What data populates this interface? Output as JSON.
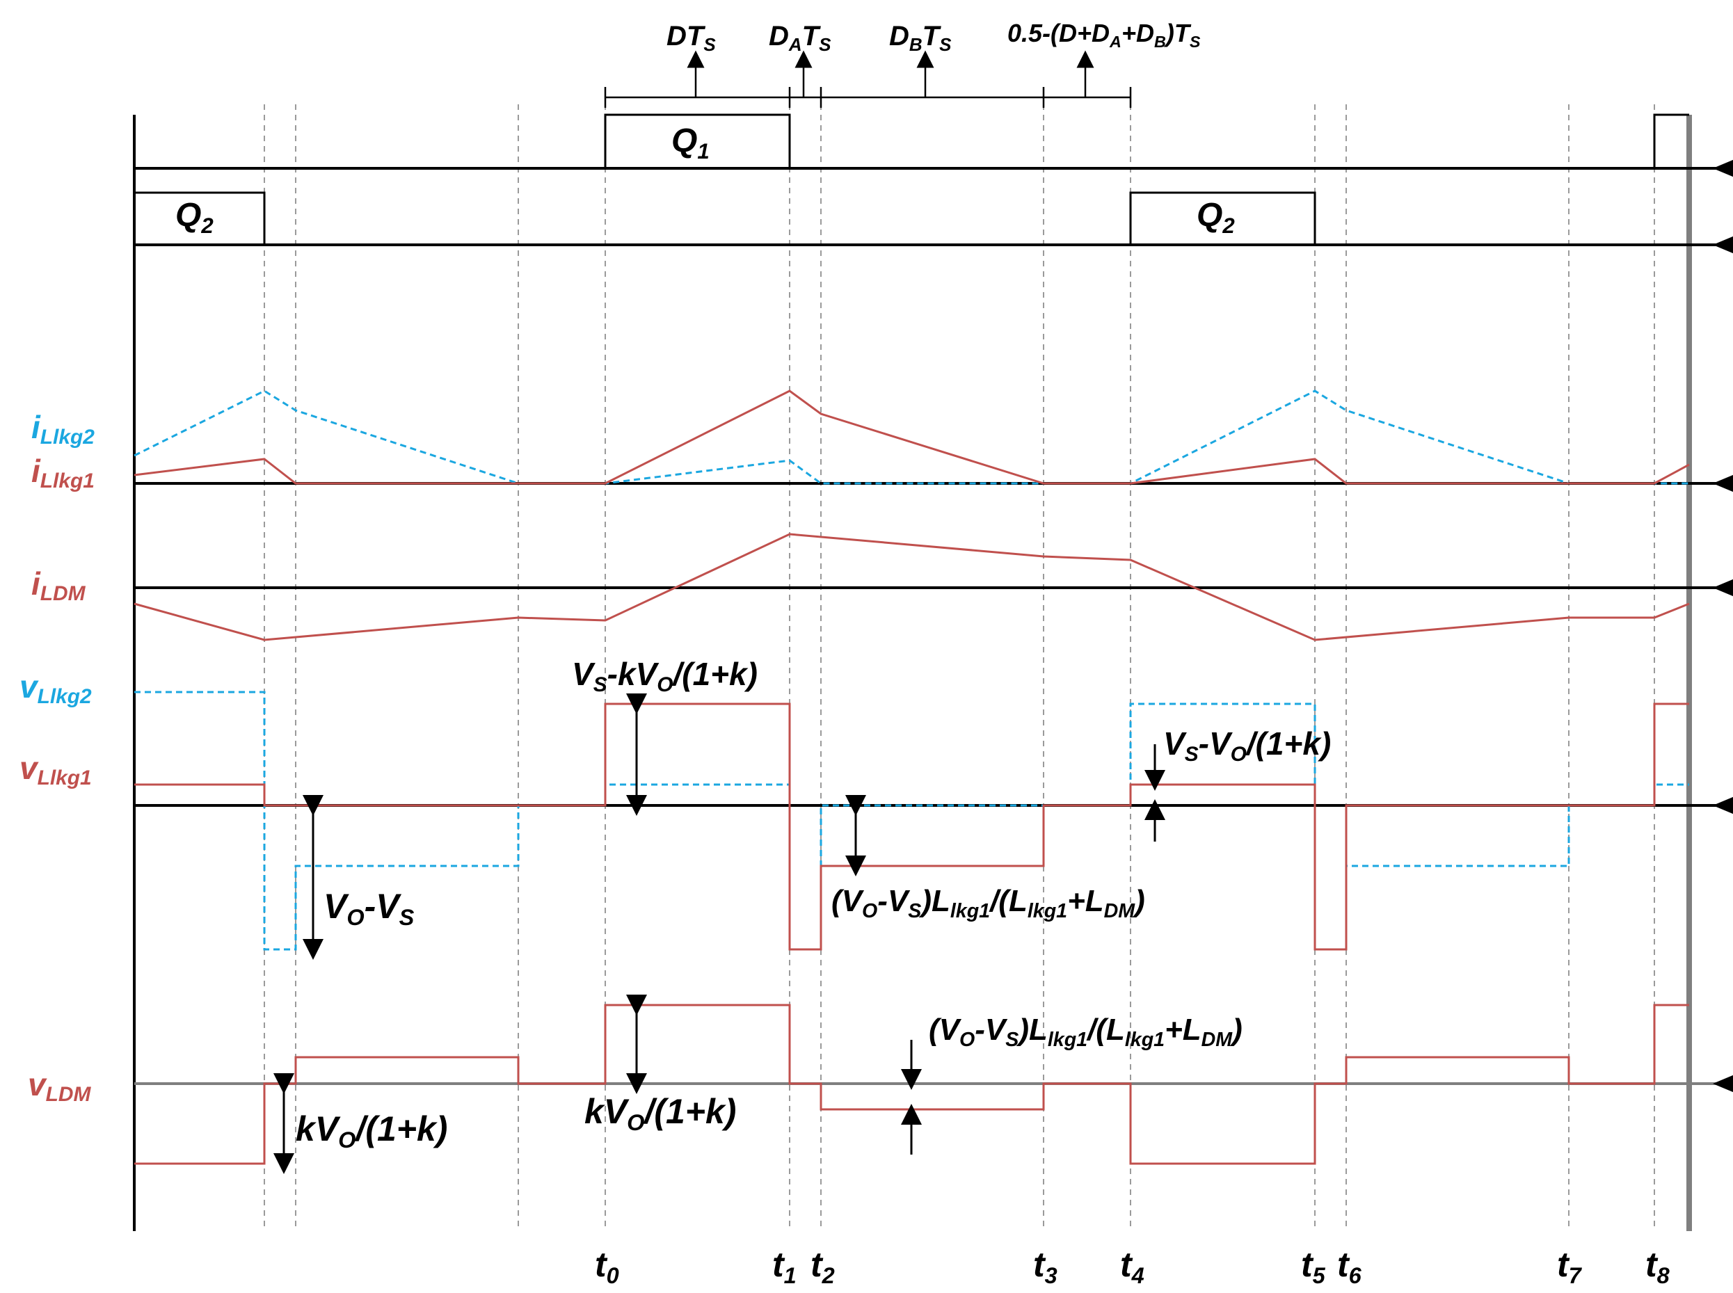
{
  "colors": {
    "axis": "#000000",
    "red": "#c0504d",
    "cyan": "#1ba7e0",
    "guide": "#9a9a9a"
  },
  "intervals": [
    {
      "id": "dts",
      "main": "DT",
      "sub": "S"
    },
    {
      "id": "dats",
      "main": "D",
      "sub": "A",
      "main2": "T",
      "sub2": "S"
    },
    {
      "id": "dbts",
      "main": "D",
      "sub": "B",
      "main2": "T",
      "sub2": "S"
    },
    {
      "id": "rest",
      "text": "0.5-(D+D",
      "sub": "A",
      "text2": "+D",
      "sub2": "B",
      "text3": ")T",
      "sub3": "S"
    }
  ],
  "switch_labels": {
    "q1": {
      "main": "Q",
      "sub": "1"
    },
    "q2": {
      "main": "Q",
      "sub": "2"
    }
  },
  "signals": {
    "i_lkg2": {
      "main": "i",
      "sub": "Llkg2"
    },
    "i_lkg1": {
      "main": "i",
      "sub": "Llkg1"
    },
    "i_ldm": {
      "main": "i",
      "sub": "LDM"
    },
    "v_lkg2": {
      "main": "v",
      "sub": "Llkg2"
    },
    "v_lkg1": {
      "main": "v",
      "sub": "Llkg1"
    },
    "v_ldm": {
      "main": "v",
      "sub": "LDM"
    }
  },
  "annotations": {
    "vs_kvo": {
      "a": "V",
      "as": "S",
      "b": "-kV",
      "bs": "O",
      "c": "/(1+k)"
    },
    "vs_vo": {
      "a": "V",
      "as": "S",
      "b": "-V",
      "bs": "O",
      "c": "/(1+k)"
    },
    "vo_vs": {
      "a": "V",
      "as": "O",
      "b": "-V",
      "bs": "S"
    },
    "ratio_lower": {
      "a": "(V",
      "as": "O",
      "b": "-V",
      "bs": "S",
      "c": ")L",
      "cs": "lkg1",
      "d": "/(L",
      "ds": "lkg1",
      "e": "+L",
      "es": "DM",
      "f": ")"
    },
    "ratio_upper": {
      "a": "(V",
      "as": "O",
      "b": "-V",
      "bs": "S",
      "c": ")L",
      "cs": "lkg1",
      "d": "/(L",
      "ds": "lkg1",
      "e": "+L",
      "es": "DM",
      "f": ")"
    },
    "kvo_left": {
      "a": "kV",
      "as": "O",
      "b": "/(1+k)"
    },
    "kvo_mid": {
      "a": "kV",
      "as": "O",
      "b": "/(1+k)"
    }
  },
  "time_marks": [
    {
      "main": "t",
      "sub": "0"
    },
    {
      "main": "t",
      "sub": "1"
    },
    {
      "main": "t",
      "sub": "2"
    },
    {
      "main": "t",
      "sub": "3"
    },
    {
      "main": "t",
      "sub": "4"
    },
    {
      "main": "t",
      "sub": "5"
    },
    {
      "main": "t",
      "sub": "6"
    },
    {
      "main": "t",
      "sub": "7"
    },
    {
      "main": "t",
      "sub": "8"
    }
  ]
}
